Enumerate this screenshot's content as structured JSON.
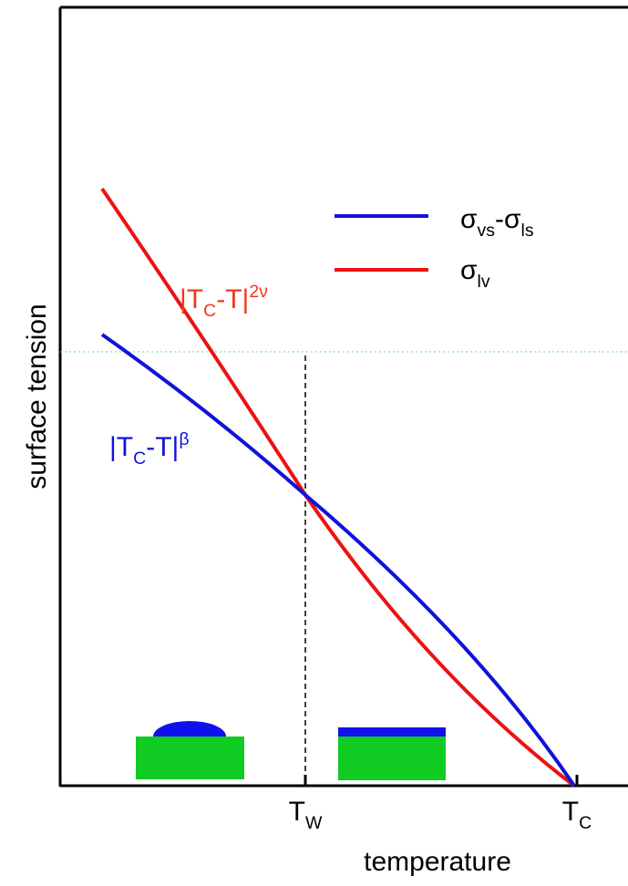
{
  "y_axis_label": "surface tension",
  "x_axis_label": "temperature",
  "x_ticks": [
    [
      {
        "text": "T"
      },
      {
        "sub": "W"
      }
    ],
    [
      {
        "text": "T"
      },
      {
        "sub": "C"
      }
    ]
  ],
  "legend": [
    [
      {
        "text": "σ"
      },
      {
        "sub": "vs"
      },
      {
        "text": "-σ"
      },
      {
        "sub": "ls"
      }
    ],
    [
      {
        "text": "σ"
      },
      {
        "sub": "lv"
      }
    ]
  ],
  "annotations": [
    [
      {
        "text": "|T"
      },
      {
        "sub": "C"
      },
      {
        "text": "-T|"
      },
      {
        "sup": "2ν"
      }
    ],
    [
      {
        "text": "|T"
      },
      {
        "sub": "C"
      },
      {
        "text": "-T|"
      },
      {
        "sup": "β"
      }
    ]
  ]
}
